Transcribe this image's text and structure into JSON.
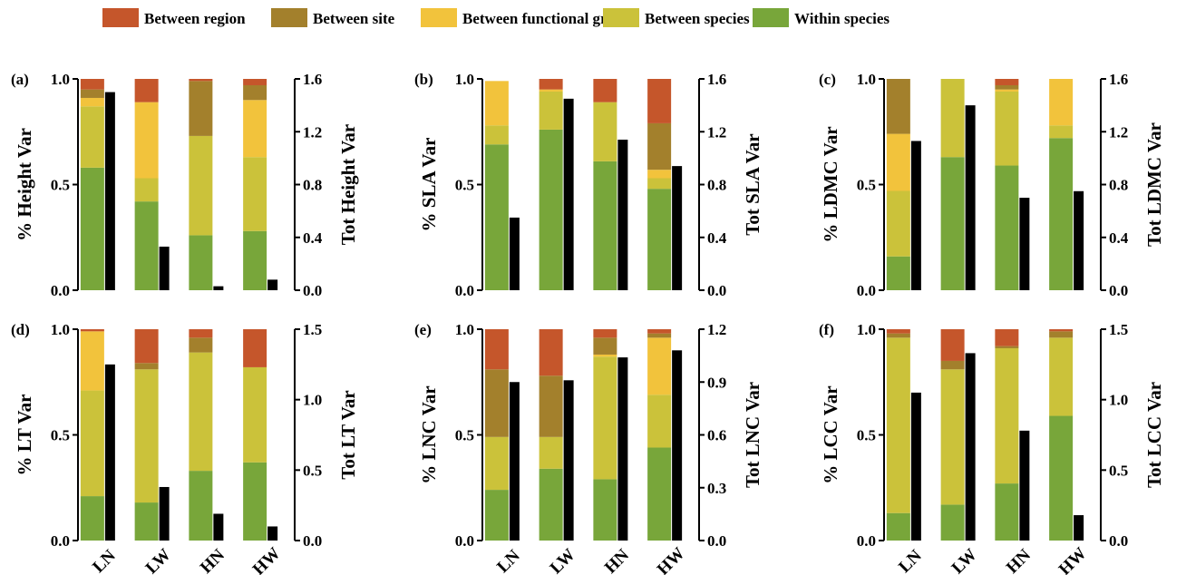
{
  "legend": [
    {
      "label": "Between region",
      "color": "#C5562B"
    },
    {
      "label": "Between site",
      "color": "#A3802C"
    },
    {
      "label": "Between functional group",
      "color": "#F2C33C"
    },
    {
      "label": "Between species",
      "color": "#CBC23A"
    },
    {
      "label": "Within species",
      "color": "#78A63A"
    }
  ],
  "total_bar_color": "#000000",
  "chart_data": [
    {
      "type": "bar",
      "stacked": true,
      "panel": "(a)",
      "categories": [
        "LN",
        "LW",
        "HN",
        "HW"
      ],
      "ylabel": "% Height Var",
      "ylim": [
        0,
        1.0
      ],
      "yticks": [
        "0.0",
        "0.5",
        "1.0"
      ],
      "y2label": "Tot  Height Var",
      "y2lim": [
        0,
        1.6
      ],
      "y2ticks": [
        "0.0",
        "0.4",
        "0.8",
        "1.2",
        "1.6"
      ],
      "series": [
        {
          "name": "Within species",
          "values": [
            0.58,
            0.42,
            0.26,
            0.28
          ]
        },
        {
          "name": "Between species",
          "values": [
            0.29,
            0.11,
            0.47,
            0.35
          ]
        },
        {
          "name": "Between functional group",
          "values": [
            0.04,
            0.36,
            0.0,
            0.27
          ]
        },
        {
          "name": "Between site",
          "values": [
            0.04,
            0.0,
            0.26,
            0.07
          ]
        },
        {
          "name": "Between region",
          "values": [
            0.05,
            0.11,
            0.01,
            0.03
          ]
        }
      ],
      "total": [
        1.5,
        0.33,
        0.03,
        0.08
      ]
    },
    {
      "type": "bar",
      "stacked": true,
      "panel": "(b)",
      "categories": [
        "LN",
        "LW",
        "HN",
        "HW"
      ],
      "ylabel": "% SLA Var",
      "ylim": [
        0,
        1.0
      ],
      "yticks": [
        "0.0",
        "0.5",
        "1.0"
      ],
      "y2label": "Tot SLA Var",
      "y2lim": [
        0,
        1.6
      ],
      "y2ticks": [
        "0.0",
        "0.4",
        "0.8",
        "1.2",
        "1.6"
      ],
      "series": [
        {
          "name": "Within species",
          "values": [
            0.69,
            0.76,
            0.61,
            0.48
          ]
        },
        {
          "name": "Between species",
          "values": [
            0.09,
            0.18,
            0.28,
            0.05
          ]
        },
        {
          "name": "Between functional group",
          "values": [
            0.21,
            0.01,
            0.0,
            0.04
          ]
        },
        {
          "name": "Between site",
          "values": [
            0.0,
            0.0,
            0.0,
            0.22
          ]
        },
        {
          "name": "Between region",
          "values": [
            0.0,
            0.05,
            0.11,
            0.21
          ]
        }
      ],
      "total": [
        0.55,
        1.45,
        1.14,
        0.94
      ]
    },
    {
      "type": "bar",
      "stacked": true,
      "panel": "(c)",
      "categories": [
        "LN",
        "LW",
        "HN",
        "HW"
      ],
      "ylabel": "% LDMC Var",
      "ylim": [
        0,
        1.0
      ],
      "yticks": [
        "0.0",
        "0.5",
        "1.0"
      ],
      "y2label": "Tot  LDMC Var",
      "y2lim": [
        0,
        1.6
      ],
      "y2ticks": [
        "0.0",
        "0.4",
        "0.8",
        "1.2",
        "1.6"
      ],
      "series": [
        {
          "name": "Within species",
          "values": [
            0.16,
            0.63,
            0.59,
            0.72
          ]
        },
        {
          "name": "Between species",
          "values": [
            0.31,
            0.37,
            0.35,
            0.06
          ]
        },
        {
          "name": "Between functional group",
          "values": [
            0.27,
            0.0,
            0.01,
            0.22
          ]
        },
        {
          "name": "Between site",
          "values": [
            0.26,
            0.0,
            0.02,
            0.0
          ]
        },
        {
          "name": "Between region",
          "values": [
            0.0,
            0.0,
            0.03,
            0.0
          ]
        }
      ],
      "total": [
        1.13,
        1.4,
        0.7,
        0.75
      ]
    },
    {
      "type": "bar",
      "stacked": true,
      "panel": "(d)",
      "categories": [
        "LN",
        "LW",
        "HN",
        "HW"
      ],
      "ylabel": "% LT Var",
      "ylim": [
        0,
        1.0
      ],
      "yticks": [
        "0.0",
        "0.5",
        "1.0"
      ],
      "y2label": "Tot LT Var",
      "y2lim": [
        0,
        1.5
      ],
      "y2ticks": [
        "0.0",
        "0.5",
        "1.0",
        "1.5"
      ],
      "series": [
        {
          "name": "Within species",
          "values": [
            0.21,
            0.18,
            0.33,
            0.37
          ]
        },
        {
          "name": "Between species",
          "values": [
            0.5,
            0.63,
            0.56,
            0.45
          ]
        },
        {
          "name": "Between functional group",
          "values": [
            0.28,
            0.0,
            0.0,
            0.0
          ]
        },
        {
          "name": "Between site",
          "values": [
            0.0,
            0.03,
            0.07,
            0.0
          ]
        },
        {
          "name": "Between region",
          "values": [
            0.01,
            0.16,
            0.04,
            0.18
          ]
        }
      ],
      "total": [
        1.25,
        0.38,
        0.19,
        0.1
      ]
    },
    {
      "type": "bar",
      "stacked": true,
      "panel": "(e)",
      "categories": [
        "LN",
        "LW",
        "HN",
        "HW"
      ],
      "ylabel": "% LNC Var",
      "ylim": [
        0,
        1.0
      ],
      "yticks": [
        "0.0",
        "0.5",
        "1.0"
      ],
      "y2label": "Tot LNC Var",
      "y2lim": [
        0,
        1.2
      ],
      "y2ticks": [
        "0.0",
        "0.3",
        "0.6",
        "0.9",
        "1.2"
      ],
      "series": [
        {
          "name": "Within species",
          "values": [
            0.24,
            0.34,
            0.29,
            0.44
          ]
        },
        {
          "name": "Between species",
          "values": [
            0.25,
            0.15,
            0.58,
            0.25
          ]
        },
        {
          "name": "Between functional group",
          "values": [
            0.0,
            0.0,
            0.01,
            0.27
          ]
        },
        {
          "name": "Between site",
          "values": [
            0.32,
            0.29,
            0.08,
            0.02
          ]
        },
        {
          "name": "Between region",
          "values": [
            0.19,
            0.22,
            0.04,
            0.02
          ]
        }
      ],
      "total": [
        0.9,
        0.91,
        1.04,
        1.08
      ]
    },
    {
      "type": "bar",
      "stacked": true,
      "panel": "(f)",
      "categories": [
        "LN",
        "LW",
        "HN",
        "HW"
      ],
      "ylabel": "% LCC Var",
      "ylim": [
        0,
        1.0
      ],
      "yticks": [
        "0.0",
        "0.5",
        "1.0"
      ],
      "y2label": "Tot LCC Var",
      "y2lim": [
        0,
        1.5
      ],
      "y2ticks": [
        "0.0",
        "0.5",
        "1.0",
        "1.5"
      ],
      "series": [
        {
          "name": "Within species",
          "values": [
            0.13,
            0.17,
            0.27,
            0.59
          ]
        },
        {
          "name": "Between species",
          "values": [
            0.83,
            0.64,
            0.64,
            0.37
          ]
        },
        {
          "name": "Between functional group",
          "values": [
            0.0,
            0.0,
            0.0,
            0.0
          ]
        },
        {
          "name": "Between site",
          "values": [
            0.02,
            0.04,
            0.01,
            0.03
          ]
        },
        {
          "name": "Between region",
          "values": [
            0.02,
            0.15,
            0.08,
            0.01
          ]
        }
      ],
      "total": [
        1.05,
        1.33,
        0.78,
        0.18
      ]
    }
  ]
}
